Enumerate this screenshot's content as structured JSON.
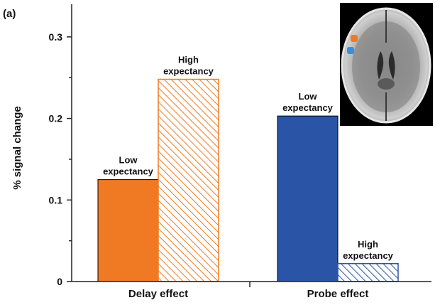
{
  "panel_label": "(a)",
  "colors": {
    "low_delay": "#f07a24",
    "high_delay": "#f07a24",
    "low_probe": "#2a55a6",
    "high_probe": "#2a55a6",
    "axis": "#222222",
    "brain_bg": "#000000",
    "blob_orange": "#f07a24",
    "blob_blue": "#3a8ee0"
  },
  "icons": {
    "inset": "brain-axial-mri-icon"
  },
  "chart_data": {
    "type": "bar",
    "categories": [
      "Delay effect",
      "Probe effect"
    ],
    "series": [
      {
        "name": "Low expectancy",
        "values": [
          0.125,
          0.203
        ],
        "fill": "solid"
      },
      {
        "name": "High expectancy",
        "values": [
          0.248,
          0.022
        ],
        "fill": "hatched"
      }
    ],
    "bar_labels": [
      {
        "category": 0,
        "series": 0,
        "lines": [
          "Low",
          "expectancy"
        ]
      },
      {
        "category": 0,
        "series": 1,
        "lines": [
          "High",
          "expectancy"
        ]
      },
      {
        "category": 1,
        "series": 0,
        "lines": [
          "Low",
          "expectancy"
        ]
      },
      {
        "category": 1,
        "series": 1,
        "lines": [
          "High",
          "expectancy"
        ]
      }
    ],
    "title": "",
    "xlabel": "",
    "ylabel": "% signal change",
    "ylim": [
      0,
      0.34
    ],
    "yticks": [
      0,
      0.1,
      0.2,
      0.3
    ],
    "ytick_labels": [
      "0",
      "0.1",
      "0.2",
      "0.3"
    ],
    "grid": false
  }
}
